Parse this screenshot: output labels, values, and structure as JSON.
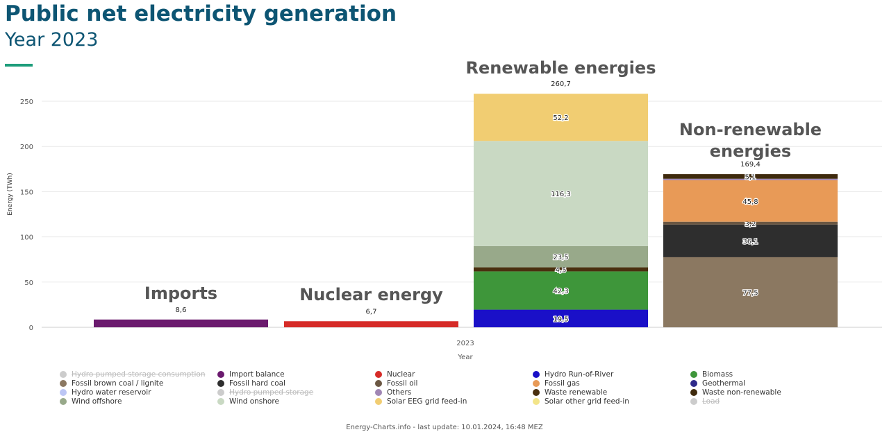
{
  "header": {
    "title": "Public net electricity generation",
    "subtitle": "Year 2023"
  },
  "footer": "Energy-Charts.info - last update: 10.01.2024, 16:48 MEZ",
  "chart_data": {
    "type": "bar",
    "stacked": true,
    "ylabel": "Energy (TWh)",
    "xlabel": "Year",
    "x_tick": "2023",
    "ylim": [
      0,
      260
    ],
    "yticks": [
      0,
      50,
      100,
      150,
      200,
      250
    ],
    "grid": true,
    "groups": [
      {
        "label": "Imports",
        "total": "8,6",
        "segments": [
          {
            "name": "Import balance",
            "value": 8.6,
            "color": "#6b1a6e",
            "label": ""
          }
        ]
      },
      {
        "label": "Nuclear energy",
        "total": "6,7",
        "segments": [
          {
            "name": "Nuclear",
            "value": 6.7,
            "color": "#d62b27",
            "label": ""
          }
        ]
      },
      {
        "label": "Renewable energies",
        "total": "260,7",
        "segments": [
          {
            "name": "Hydro Run-of-River",
            "value": 19.5,
            "color": "#1a10c8",
            "label": "19,5"
          },
          {
            "name": "Biomass",
            "value": 42.3,
            "color": "#3e963a",
            "label": "42,3"
          },
          {
            "name": "Waste renewable",
            "value": 4.5,
            "color": "#4a3010",
            "label": "4,5"
          },
          {
            "name": "Wind offshore",
            "value": 23.5,
            "color": "#98a98a",
            "label": "23,5"
          },
          {
            "name": "Wind onshore",
            "value": 116.3,
            "color": "#c9d9c3",
            "label": "116,3"
          },
          {
            "name": "Solar EEG grid feed-in",
            "value": 52.2,
            "color": "#f1cd72",
            "label": "52,2"
          }
        ]
      },
      {
        "label": "Non-renewable energies",
        "total": "169,4",
        "segments": [
          {
            "name": "Fossil brown coal / lignite",
            "value": 77.5,
            "color": "#8b7861",
            "label": "77,5"
          },
          {
            "name": "Fossil hard coal",
            "value": 36.1,
            "color": "#2e2e2e",
            "label": "36,1"
          },
          {
            "name": "Fossil oil",
            "value": 3.2,
            "color": "#6b5743",
            "label": "3,2"
          },
          {
            "name": "Fossil gas",
            "value": 45.8,
            "color": "#e89a57",
            "label": "45,8"
          },
          {
            "name": "Others",
            "value": 1.7,
            "color": "#a086b4",
            "label": ""
          },
          {
            "name": "Waste non-renewable",
            "value": 5.1,
            "color": "#3f2a0d",
            "label": "5,1"
          }
        ]
      }
    ],
    "legend": [
      {
        "name": "Hydro pumped storage consumption",
        "color": "#cccccc",
        "hidden": true
      },
      {
        "name": "Import balance",
        "color": "#6b1a6e"
      },
      {
        "name": "Nuclear",
        "color": "#d62b27"
      },
      {
        "name": "Hydro Run-of-River",
        "color": "#1a10c8"
      },
      {
        "name": "Biomass",
        "color": "#3e963a"
      },
      {
        "name": "Fossil brown coal / lignite",
        "color": "#8b7861"
      },
      {
        "name": "Fossil hard coal",
        "color": "#2e2e2e"
      },
      {
        "name": "Fossil oil",
        "color": "#6b5743"
      },
      {
        "name": "Fossil gas",
        "color": "#e89a57"
      },
      {
        "name": "Geothermal",
        "color": "#2f2a8a"
      },
      {
        "name": "Hydro water reservoir",
        "color": "#bcc6f5"
      },
      {
        "name": "Hydro pumped storage",
        "color": "#cccccc",
        "hidden": true
      },
      {
        "name": "Others",
        "color": "#a086b4"
      },
      {
        "name": "Waste renewable",
        "color": "#4a3010"
      },
      {
        "name": "Waste non-renewable",
        "color": "#3f2a0d"
      },
      {
        "name": "Wind offshore",
        "color": "#98a98a"
      },
      {
        "name": "Wind onshore",
        "color": "#c9d9c3"
      },
      {
        "name": "Solar EEG grid feed-in",
        "color": "#f1cd72"
      },
      {
        "name": "Solar other grid feed-in",
        "color": "#f3e58a"
      },
      {
        "name": "Load",
        "color": "#cccccc",
        "hidden": true
      }
    ]
  }
}
